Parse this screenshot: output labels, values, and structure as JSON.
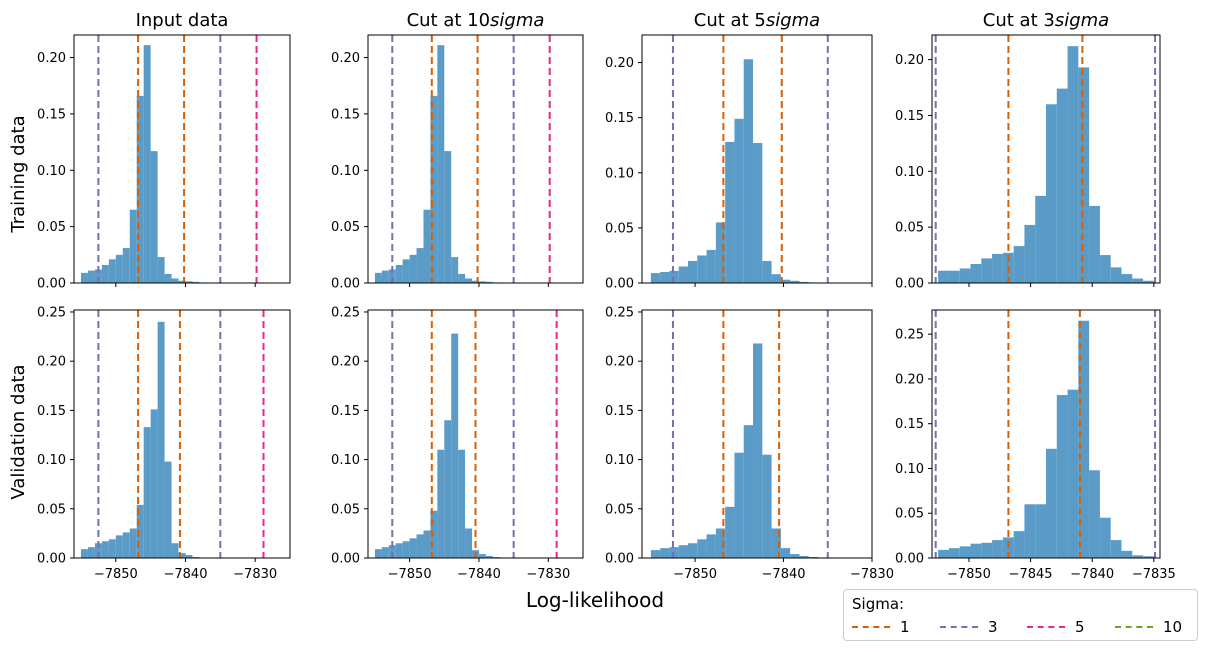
{
  "figure": {
    "xlabel": "Log-likelihood",
    "row_labels": [
      "Training data",
      "Validation data"
    ],
    "col_titles": [
      "Input data",
      "Cut at 10sigma",
      "Cut at 5sigma",
      "Cut at 3sigma"
    ]
  },
  "legend": {
    "title": "Sigma:",
    "placement": "lower-right",
    "entries": [
      {
        "label": "1",
        "color": "#d95f02"
      },
      {
        "label": "3",
        "color": "#7570b3"
      },
      {
        "label": "5",
        "color": "#e7298a"
      },
      {
        "label": "10",
        "color": "#66a61e"
      }
    ]
  },
  "chart_data": [
    {
      "type": "bar",
      "row": 0,
      "col": 0,
      "title": "Input data",
      "ylabel": "Training data",
      "xlim": [
        -7856,
        -7825
      ],
      "ylim": [
        0,
        0.22
      ],
      "xticks": [
        -7850,
        -7840,
        -7830
      ],
      "show_xticklabels": false,
      "yticks": [
        0,
        0.05,
        0.1,
        0.15,
        0.2
      ],
      "bins": {
        "start": -7855,
        "width": 1.0,
        "values": [
          0.009,
          0.011,
          0.012,
          0.016,
          0.021,
          0.025,
          0.031,
          0.065,
          0.166,
          0.211,
          0.117,
          0.023,
          0.008,
          0.004,
          0.002,
          0.0015,
          0.001,
          0.0005
        ]
      },
      "vlines": [
        {
          "sigma": "1",
          "x": -7846.8
        },
        {
          "sigma": "1",
          "x": -7840.2
        },
        {
          "sigma": "3",
          "x": -7852.5
        },
        {
          "sigma": "3",
          "x": -7835.0
        },
        {
          "sigma": "5",
          "x": -7829.8
        }
      ]
    },
    {
      "type": "bar",
      "row": 0,
      "col": 1,
      "title": "Cut at 10sigma",
      "ylabel": "",
      "xlim": [
        -7856,
        -7825
      ],
      "ylim": [
        0,
        0.22
      ],
      "xticks": [
        -7850,
        -7840,
        -7830
      ],
      "show_xticklabels": false,
      "yticks": [
        0,
        0.05,
        0.1,
        0.15,
        0.2
      ],
      "bins": {
        "start": -7855,
        "width": 1.0,
        "values": [
          0.009,
          0.011,
          0.012,
          0.016,
          0.021,
          0.025,
          0.031,
          0.065,
          0.166,
          0.211,
          0.117,
          0.023,
          0.008,
          0.004,
          0.002,
          0.0015,
          0.001,
          0.0005
        ]
      },
      "vlines": [
        {
          "sigma": "1",
          "x": -7846.8
        },
        {
          "sigma": "1",
          "x": -7840.2
        },
        {
          "sigma": "3",
          "x": -7852.5
        },
        {
          "sigma": "3",
          "x": -7835.0
        },
        {
          "sigma": "5",
          "x": -7829.8
        }
      ]
    },
    {
      "type": "bar",
      "row": 0,
      "col": 2,
      "title": "Cut at 5sigma",
      "ylabel": "",
      "xlim": [
        -7856,
        -7830
      ],
      "ylim": [
        0,
        0.225
      ],
      "xticks": [
        -7850,
        -7840,
        -7830
      ],
      "show_xticklabels": false,
      "yticks": [
        0,
        0.05,
        0.1,
        0.15,
        0.2
      ],
      "bins": {
        "start": -7855,
        "width": 1.05,
        "values": [
          0.009,
          0.01,
          0.011,
          0.015,
          0.02,
          0.025,
          0.03,
          0.055,
          0.128,
          0.149,
          0.203,
          0.127,
          0.02,
          0.008,
          0.003,
          0.002,
          0.001,
          0.0005
        ]
      },
      "vlines": [
        {
          "sigma": "1",
          "x": -7846.8
        },
        {
          "sigma": "1",
          "x": -7840.2
        },
        {
          "sigma": "3",
          "x": -7852.5
        },
        {
          "sigma": "3",
          "x": -7835.0
        }
      ]
    },
    {
      "type": "bar",
      "row": 0,
      "col": 3,
      "title": "Cut at 3sigma",
      "ylabel": "",
      "xlim": [
        -7853,
        -7834.5
      ],
      "ylim": [
        0,
        0.222
      ],
      "xticks": [
        -7850,
        -7845,
        -7840,
        -7835
      ],
      "show_xticklabels": false,
      "yticks": [
        0,
        0.05,
        0.1,
        0.15,
        0.2
      ],
      "bins": {
        "start": -7852.5,
        "width": 0.875,
        "values": [
          0.011,
          0.011,
          0.013,
          0.017,
          0.022,
          0.026,
          0.027,
          0.033,
          0.052,
          0.078,
          0.16,
          0.174,
          0.212,
          0.193,
          0.069,
          0.025,
          0.014,
          0.008,
          0.004,
          0.002
        ]
      },
      "vlines": [
        {
          "sigma": "1",
          "x": -7846.8
        },
        {
          "sigma": "1",
          "x": -7840.8
        },
        {
          "sigma": "3",
          "x": -7852.7
        },
        {
          "sigma": "3",
          "x": -7834.9
        }
      ]
    },
    {
      "type": "bar",
      "row": 1,
      "col": 0,
      "title": "",
      "ylabel": "Validation data",
      "xlim": [
        -7856,
        -7825
      ],
      "ylim": [
        0,
        0.252
      ],
      "xticks": [
        -7850,
        -7840,
        -7830
      ],
      "show_xticklabels": true,
      "yticks": [
        0,
        0.05,
        0.1,
        0.15,
        0.2,
        0.25
      ],
      "bins": {
        "start": -7855,
        "width": 1.0,
        "values": [
          0.009,
          0.011,
          0.015,
          0.017,
          0.019,
          0.023,
          0.026,
          0.03,
          0.054,
          0.133,
          0.151,
          0.24,
          0.098,
          0.015,
          0.005,
          0.003,
          0.001,
          0.0005
        ]
      },
      "vlines": [
        {
          "sigma": "1",
          "x": -7846.8
        },
        {
          "sigma": "1",
          "x": -7840.8
        },
        {
          "sigma": "3",
          "x": -7852.5
        },
        {
          "sigma": "3",
          "x": -7835.0
        },
        {
          "sigma": "5",
          "x": -7828.8
        }
      ]
    },
    {
      "type": "bar",
      "row": 1,
      "col": 1,
      "title": "",
      "ylabel": "",
      "xlim": [
        -7856,
        -7825
      ],
      "ylim": [
        0,
        0.252
      ],
      "xticks": [
        -7850,
        -7840,
        -7830
      ],
      "show_xticklabels": true,
      "yticks": [
        0,
        0.05,
        0.1,
        0.15,
        0.2,
        0.25
      ],
      "bins": {
        "start": -7855,
        "width": 1.0,
        "values": [
          0.009,
          0.011,
          0.013,
          0.015,
          0.017,
          0.02,
          0.024,
          0.028,
          0.048,
          0.11,
          0.14,
          0.228,
          0.11,
          0.03,
          0.008,
          0.004,
          0.002,
          0.001
        ]
      },
      "vlines": [
        {
          "sigma": "1",
          "x": -7846.8
        },
        {
          "sigma": "1",
          "x": -7840.5
        },
        {
          "sigma": "3",
          "x": -7852.5
        },
        {
          "sigma": "3",
          "x": -7835.0
        },
        {
          "sigma": "5",
          "x": -7828.8
        }
      ]
    },
    {
      "type": "bar",
      "row": 1,
      "col": 2,
      "title": "",
      "ylabel": "",
      "xlim": [
        -7856,
        -7830
      ],
      "ylim": [
        0,
        0.252
      ],
      "xticks": [
        -7850,
        -7840,
        -7830
      ],
      "show_xticklabels": true,
      "yticks": [
        0,
        0.05,
        0.1,
        0.15,
        0.2,
        0.25
      ],
      "bins": {
        "start": -7855,
        "width": 1.05,
        "values": [
          0.008,
          0.01,
          0.011,
          0.013,
          0.015,
          0.019,
          0.024,
          0.03,
          0.052,
          0.107,
          0.135,
          0.218,
          0.105,
          0.03,
          0.01,
          0.004,
          0.002,
          0.001
        ]
      },
      "vlines": [
        {
          "sigma": "1",
          "x": -7846.8
        },
        {
          "sigma": "1",
          "x": -7840.5
        },
        {
          "sigma": "3",
          "x": -7852.5
        },
        {
          "sigma": "3",
          "x": -7835.0
        }
      ]
    },
    {
      "type": "bar",
      "row": 1,
      "col": 3,
      "title": "",
      "ylabel": "",
      "xlim": [
        -7853,
        -7834.5
      ],
      "ylim": [
        0,
        0.277
      ],
      "xticks": [
        -7850,
        -7845,
        -7840,
        -7835
      ],
      "show_xticklabels": true,
      "yticks": [
        0,
        0.05,
        0.1,
        0.15,
        0.2,
        0.25
      ],
      "bins": {
        "start": -7852.5,
        "width": 0.875,
        "values": [
          0.009,
          0.011,
          0.013,
          0.016,
          0.017,
          0.02,
          0.023,
          0.03,
          0.06,
          0.06,
          0.122,
          0.182,
          0.188,
          0.265,
          0.098,
          0.045,
          0.02,
          0.008,
          0.003,
          0.002
        ]
      },
      "vlines": [
        {
          "sigma": "1",
          "x": -7846.8
        },
        {
          "sigma": "1",
          "x": -7841.0
        },
        {
          "sigma": "3",
          "x": -7852.7
        },
        {
          "sigma": "3",
          "x": -7834.9
        }
      ]
    }
  ]
}
